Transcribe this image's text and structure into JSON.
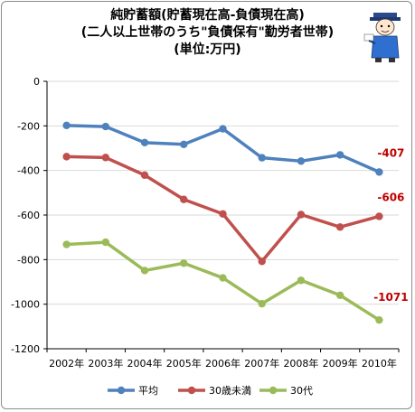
{
  "chart_data": {
    "type": "line",
    "title_lines": [
      "純貯蓄額(貯蓄現在高-負債現在高)",
      "(二人以上世帯のうち\"負債保有\"勤労者世帯)",
      "(単位:万円)"
    ],
    "categories": [
      "2002年",
      "2003年",
      "2004年",
      "2005年",
      "2006年",
      "2007年",
      "2008年",
      "2009年",
      "2010年"
    ],
    "series": [
      {
        "name": "平均",
        "color": "#4f81bd",
        "values": [
          -198,
          -203,
          -275,
          -283,
          -213,
          -343,
          -358,
          -330,
          -407
        ]
      },
      {
        "name": "30歳未満",
        "color": "#c0504d",
        "values": [
          -338,
          -342,
          -421,
          -530,
          -595,
          -808,
          -598,
          -654,
          -606
        ]
      },
      {
        "name": "30代",
        "color": "#9bbb59",
        "values": [
          -732,
          -722,
          -849,
          -816,
          -882,
          -998,
          -893,
          -960,
          -1071
        ]
      }
    ],
    "data_labels": [
      {
        "series": 0,
        "index": 8,
        "text": "-407"
      },
      {
        "series": 1,
        "index": 8,
        "text": "-606"
      },
      {
        "series": 2,
        "index": 8,
        "text": "-1071"
      }
    ],
    "y_ticks": [
      "0",
      "-200",
      "-400",
      "-600",
      "-800",
      "-1000",
      "-1200"
    ],
    "ylim": [
      -1200,
      0
    ],
    "grid": true,
    "legend": "bottom"
  },
  "icon": "mascot-icon"
}
